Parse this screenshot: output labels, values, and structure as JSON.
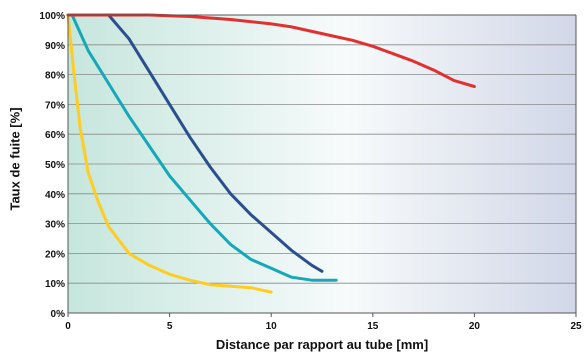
{
  "chart_data": {
    "type": "line",
    "title": "",
    "xlabel": "Distance par rapport au tube [mm]",
    "ylabel": "Taux de fuite [%]",
    "xlim": [
      0,
      25
    ],
    "ylim": [
      0,
      100
    ],
    "x_ticks": [
      "0",
      "5",
      "10",
      "15",
      "20",
      "25"
    ],
    "y_ticks": [
      "0%",
      "10%",
      "20%",
      "30%",
      "40%",
      "50%",
      "60%",
      "70%",
      "80%",
      "90%",
      "100%"
    ],
    "grid": true,
    "series": [
      {
        "color": "#ffcc22",
        "x": [
          0,
          0.3,
          0.6,
          1,
          1.5,
          2,
          3,
          4,
          5,
          6,
          7,
          8,
          9,
          10
        ],
        "y": [
          100,
          80,
          62,
          47,
          37,
          29,
          20,
          16,
          13,
          11,
          9.5,
          9,
          8.5,
          7
        ]
      },
      {
        "color": "#15a8b8",
        "x": [
          0.2,
          1,
          2,
          3,
          4,
          5,
          6,
          7,
          8,
          9,
          10,
          11,
          12,
          13.2
        ],
        "y": [
          100,
          88,
          77,
          66,
          56,
          46,
          38,
          30,
          23,
          18,
          15,
          12,
          11,
          11
        ]
      },
      {
        "color": "#2b4f8c",
        "x": [
          2,
          3,
          4,
          5,
          6,
          7,
          8,
          9,
          10,
          11,
          12,
          12.5
        ],
        "y": [
          100,
          92,
          81,
          70,
          59,
          49,
          40,
          33,
          27,
          21,
          16,
          14
        ]
      },
      {
        "color": "#e23030",
        "x": [
          0,
          2,
          4,
          6,
          8,
          10,
          11,
          12,
          13,
          14,
          15,
          16,
          17,
          18,
          19,
          20
        ],
        "y": [
          100,
          100,
          100,
          99.5,
          98.5,
          97,
          96,
          94.5,
          93,
          91.5,
          89.5,
          87,
          84.5,
          81.5,
          78,
          76
        ]
      }
    ]
  }
}
